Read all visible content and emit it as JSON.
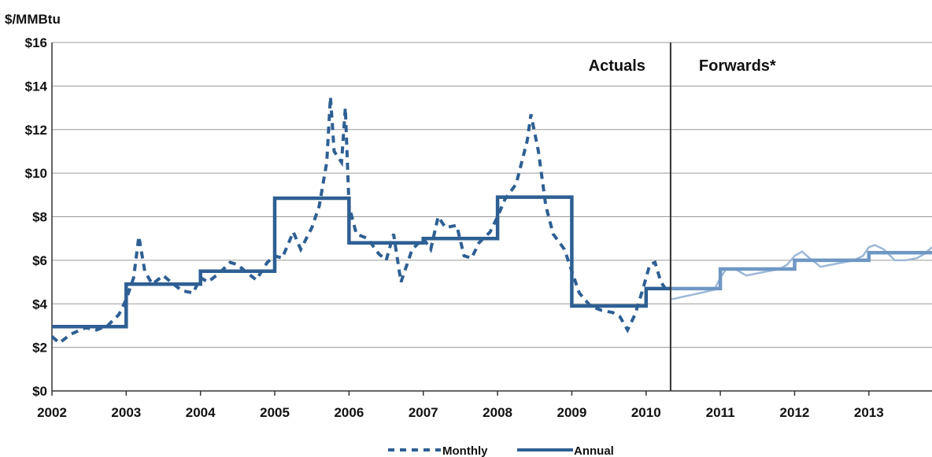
{
  "chart_data": {
    "type": "line",
    "ylabel": "$/MMBtu",
    "ylim": [
      0,
      16
    ],
    "xlim": [
      2002,
      2013.85
    ],
    "y_ticks": [
      "$0",
      "$2",
      "$4",
      "$6",
      "$8",
      "$10",
      "$12",
      "$14",
      "$16"
    ],
    "x_ticks": [
      "2002",
      "2003",
      "2004",
      "2005",
      "2006",
      "2007",
      "2008",
      "2009",
      "2010",
      "2011",
      "2012",
      "2013"
    ],
    "grid": "horizontal",
    "divider_x": 2010.33,
    "regions": [
      {
        "label": "Actuals",
        "position": "left-of-divider"
      },
      {
        "label": "Forwards*",
        "position": "right-of-divider"
      }
    ],
    "legend": {
      "position": "bottom-center",
      "items": [
        "Monthly",
        "Annual"
      ]
    },
    "colors": {
      "actuals": "#2e5f93",
      "forwards": "#6f97c4",
      "forwards_light": "#9db8d8",
      "grid": "#9a9a9a",
      "divider": "#333333"
    },
    "series": [
      {
        "name": "Monthly",
        "style": "dashed",
        "points": [
          [
            2002.0,
            2.5
          ],
          [
            2002.1,
            2.2
          ],
          [
            2002.25,
            2.6
          ],
          [
            2002.45,
            2.9
          ],
          [
            2002.6,
            2.8
          ],
          [
            2002.75,
            3.0
          ],
          [
            2002.9,
            3.5
          ],
          [
            2003.0,
            4.2
          ],
          [
            2003.1,
            5.2
          ],
          [
            2003.17,
            7.1
          ],
          [
            2003.25,
            5.5
          ],
          [
            2003.35,
            4.9
          ],
          [
            2003.5,
            5.3
          ],
          [
            2003.6,
            5.0
          ],
          [
            2003.75,
            4.6
          ],
          [
            2003.9,
            4.5
          ],
          [
            2004.0,
            5.2
          ],
          [
            2004.1,
            5.0
          ],
          [
            2004.25,
            5.4
          ],
          [
            2004.4,
            5.9
          ],
          [
            2004.5,
            5.8
          ],
          [
            2004.6,
            5.5
          ],
          [
            2004.75,
            5.1
          ],
          [
            2004.9,
            5.9
          ],
          [
            2005.0,
            6.2
          ],
          [
            2005.1,
            6.1
          ],
          [
            2005.25,
            7.3
          ],
          [
            2005.35,
            6.5
          ],
          [
            2005.5,
            7.5
          ],
          [
            2005.6,
            8.5
          ],
          [
            2005.7,
            10.5
          ],
          [
            2005.75,
            13.5
          ],
          [
            2005.8,
            11.0
          ],
          [
            2005.9,
            10.5
          ],
          [
            2005.95,
            13.0
          ],
          [
            2006.0,
            8.5
          ],
          [
            2006.1,
            7.2
          ],
          [
            2006.25,
            7.0
          ],
          [
            2006.4,
            6.3
          ],
          [
            2006.5,
            6.0
          ],
          [
            2006.6,
            7.2
          ],
          [
            2006.7,
            5.0
          ],
          [
            2006.85,
            6.5
          ],
          [
            2007.0,
            7.0
          ],
          [
            2007.1,
            6.5
          ],
          [
            2007.2,
            8.0
          ],
          [
            2007.3,
            7.5
          ],
          [
            2007.45,
            7.6
          ],
          [
            2007.55,
            6.2
          ],
          [
            2007.65,
            6.1
          ],
          [
            2007.75,
            6.8
          ],
          [
            2007.9,
            7.3
          ],
          [
            2008.0,
            8.0
          ],
          [
            2008.1,
            8.8
          ],
          [
            2008.25,
            9.5
          ],
          [
            2008.4,
            11.5
          ],
          [
            2008.45,
            12.7
          ],
          [
            2008.55,
            11.0
          ],
          [
            2008.65,
            8.5
          ],
          [
            2008.75,
            7.2
          ],
          [
            2008.9,
            6.5
          ],
          [
            2009.0,
            5.5
          ],
          [
            2009.1,
            4.5
          ],
          [
            2009.25,
            3.9
          ],
          [
            2009.4,
            3.7
          ],
          [
            2009.55,
            3.6
          ],
          [
            2009.65,
            3.4
          ],
          [
            2009.75,
            2.8
          ],
          [
            2009.85,
            3.5
          ],
          [
            2009.95,
            4.6
          ],
          [
            2010.05,
            5.8
          ],
          [
            2010.12,
            5.9
          ],
          [
            2010.2,
            5.0
          ],
          [
            2010.3,
            4.5
          ]
        ]
      },
      {
        "name": "Annual",
        "style": "solid-step",
        "values": [
          {
            "year": 2002,
            "value": 2.95
          },
          {
            "year": 2003,
            "value": 4.9
          },
          {
            "year": 2004,
            "value": 5.5
          },
          {
            "year": 2005,
            "value": 8.85
          },
          {
            "year": 2006,
            "value": 6.8
          },
          {
            "year": 2007,
            "value": 7.0
          },
          {
            "year": 2008,
            "value": 8.9
          },
          {
            "year": 2009,
            "value": 3.9
          },
          {
            "year": 2010,
            "value": 4.7
          },
          {
            "year": 2011,
            "value": 5.6
          },
          {
            "year": 2012,
            "value": 6.0
          },
          {
            "year": 2013,
            "value": 6.35
          }
        ]
      },
      {
        "name": "",
        "style": "solid-thin-forwards",
        "points": [
          [
            2010.33,
            4.2
          ],
          [
            2010.6,
            4.4
          ],
          [
            2010.8,
            4.55
          ],
          [
            2010.92,
            4.65
          ],
          [
            2011.0,
            5.2
          ],
          [
            2011.08,
            5.6
          ],
          [
            2011.2,
            5.6
          ],
          [
            2011.35,
            5.3
          ],
          [
            2011.5,
            5.4
          ],
          [
            2011.65,
            5.5
          ],
          [
            2011.8,
            5.6
          ],
          [
            2011.9,
            5.8
          ],
          [
            2012.0,
            6.2
          ],
          [
            2012.1,
            6.4
          ],
          [
            2012.2,
            6.1
          ],
          [
            2012.35,
            5.7
          ],
          [
            2012.5,
            5.8
          ],
          [
            2012.65,
            5.9
          ],
          [
            2012.8,
            6.0
          ],
          [
            2012.92,
            6.2
          ],
          [
            2013.0,
            6.6
          ],
          [
            2013.08,
            6.7
          ],
          [
            2013.2,
            6.5
          ],
          [
            2013.35,
            6.0
          ],
          [
            2013.5,
            6.0
          ],
          [
            2013.65,
            6.1
          ],
          [
            2013.75,
            6.3
          ],
          [
            2013.85,
            6.6
          ]
        ]
      }
    ]
  }
}
